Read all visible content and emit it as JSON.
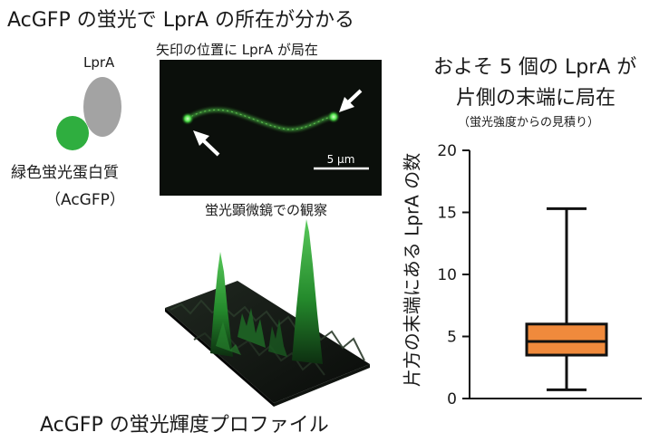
{
  "page": {
    "title": "AcGFP の蛍光で LprA の所在が分かる",
    "micrograph_caption": "矢印の位置に LprA が局在",
    "micrograph_subcaption": "蛍光顕微鏡での観察",
    "scale_bar_label": "5 μm",
    "profile_caption": "AcGFP の蛍光輝度プロファイル"
  },
  "diagram": {
    "protein_label": "LprA",
    "gfp_label_line1": "緑色蛍光蛋白質",
    "gfp_label_line2": "（AcGFP）",
    "protein_color": "#a3a3a3",
    "gfp_color": "#2fae3f"
  },
  "chart_data": {
    "type": "box",
    "title_line1": "およそ 5 個の LprA が",
    "title_line2": "片側の末端に局在",
    "subtitle": "（蛍光強度からの見積り）",
    "ylabel": "片方の末端にある LprA の数",
    "ylim": [
      0,
      20
    ],
    "yticks": [
      0,
      5,
      10,
      15,
      20
    ],
    "box": {
      "whisker_low": 0.7,
      "q1": 3.5,
      "median": 4.6,
      "q3": 6.0,
      "whisker_high": 15.3
    },
    "box_color": "#f08a3c",
    "grid": false
  }
}
